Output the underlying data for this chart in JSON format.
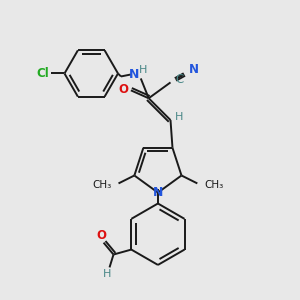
{
  "background_color": "#e8e8e8",
  "bond_color": "#1a1a1a",
  "atom_colors": {
    "N": "#2255dd",
    "O": "#dd1111",
    "Cl": "#22aa22",
    "C": "#1a1a1a",
    "H": "#4a8888",
    "CN_C": "#4a8888",
    "CN_N": "#2255dd"
  },
  "figsize": [
    3.0,
    3.0
  ],
  "dpi": 100
}
